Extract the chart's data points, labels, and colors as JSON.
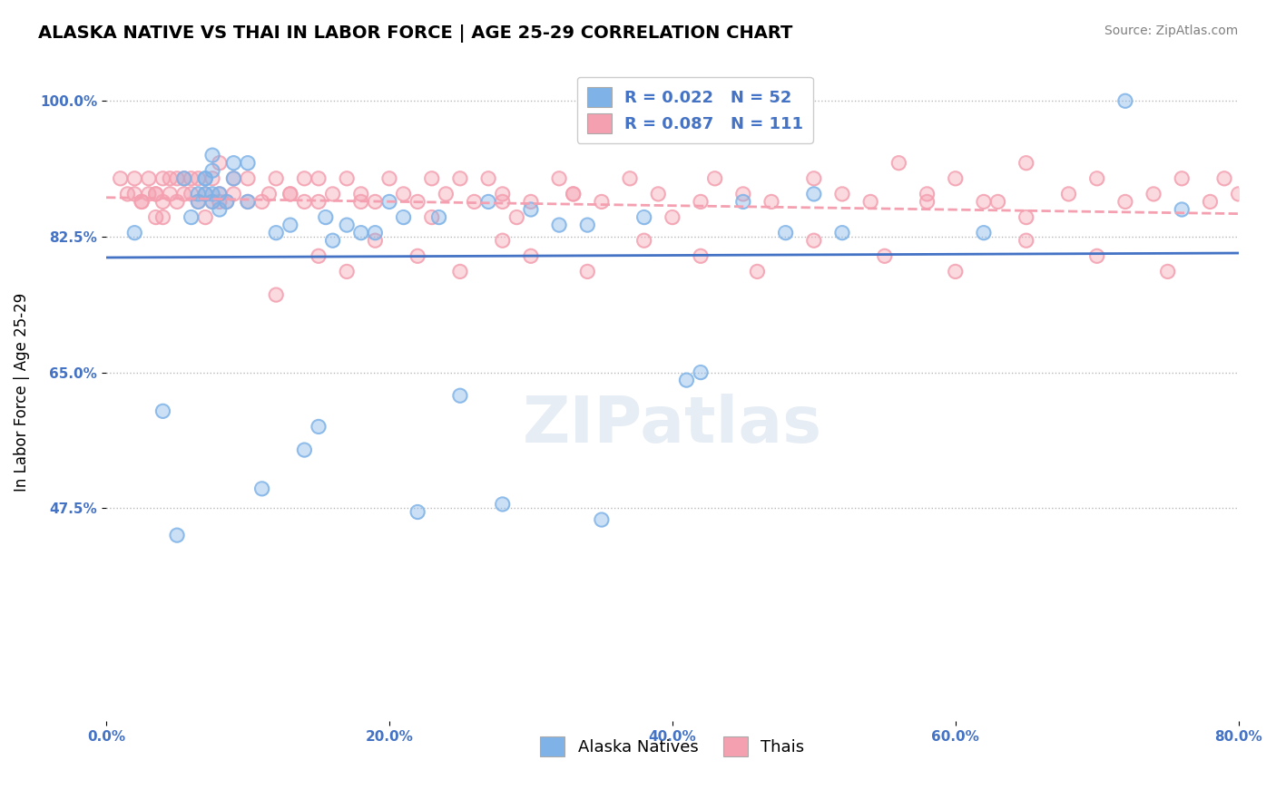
{
  "title": "ALASKA NATIVE VS THAI IN LABOR FORCE | AGE 25-29 CORRELATION CHART",
  "source_text": "Source: ZipAtlas.com",
  "xlabel": "",
  "ylabel": "In Labor Force | Age 25-29",
  "xlim": [
    0.0,
    0.8
  ],
  "ylim": [
    0.2,
    1.05
  ],
  "yticks": [
    0.475,
    0.65,
    0.825,
    1.0
  ],
  "ytick_labels": [
    "47.5%",
    "65.0%",
    "82.5%",
    "100.0%"
  ],
  "xtick_labels": [
    "0.0%",
    "20.0%",
    "40.0%",
    "60.0%",
    "80.0%"
  ],
  "xticks": [
    0.0,
    0.2,
    0.4,
    0.6,
    0.8
  ],
  "alaska_color": "#7FB3E8",
  "thai_color": "#F4A0B0",
  "alaska_R": 0.022,
  "alaska_N": 52,
  "thai_R": 0.087,
  "thai_N": 111,
  "legend_labels": [
    "Alaska Natives",
    "Thais"
  ],
  "title_fontsize": 14,
  "axis_label_fontsize": 12,
  "tick_fontsize": 11,
  "source_fontsize": 10,
  "watermark_text": "ZIPatlas",
  "alaska_scatter_x": [
    0.02,
    0.04,
    0.05,
    0.055,
    0.06,
    0.065,
    0.065,
    0.07,
    0.07,
    0.07,
    0.075,
    0.075,
    0.075,
    0.075,
    0.08,
    0.08,
    0.085,
    0.09,
    0.09,
    0.1,
    0.1,
    0.11,
    0.12,
    0.13,
    0.14,
    0.15,
    0.155,
    0.16,
    0.17,
    0.18,
    0.19,
    0.2,
    0.21,
    0.22,
    0.235,
    0.25,
    0.27,
    0.28,
    0.3,
    0.32,
    0.34,
    0.35,
    0.38,
    0.41,
    0.42,
    0.45,
    0.48,
    0.5,
    0.52,
    0.62,
    0.72,
    0.76
  ],
  "alaska_scatter_y": [
    0.83,
    0.6,
    0.44,
    0.9,
    0.85,
    0.87,
    0.88,
    0.88,
    0.9,
    0.9,
    0.87,
    0.88,
    0.91,
    0.93,
    0.86,
    0.88,
    0.87,
    0.92,
    0.9,
    0.87,
    0.92,
    0.5,
    0.83,
    0.84,
    0.55,
    0.58,
    0.85,
    0.82,
    0.84,
    0.83,
    0.83,
    0.87,
    0.85,
    0.47,
    0.85,
    0.62,
    0.87,
    0.48,
    0.86,
    0.84,
    0.84,
    0.46,
    0.85,
    0.64,
    0.65,
    0.87,
    0.83,
    0.88,
    0.83,
    0.83,
    1.0,
    0.86
  ],
  "thai_scatter_x": [
    0.01,
    0.02,
    0.02,
    0.025,
    0.03,
    0.03,
    0.035,
    0.035,
    0.04,
    0.04,
    0.04,
    0.045,
    0.045,
    0.05,
    0.05,
    0.055,
    0.06,
    0.06,
    0.065,
    0.065,
    0.07,
    0.07,
    0.075,
    0.075,
    0.08,
    0.08,
    0.085,
    0.09,
    0.09,
    0.1,
    0.1,
    0.11,
    0.115,
    0.12,
    0.13,
    0.14,
    0.14,
    0.15,
    0.15,
    0.16,
    0.17,
    0.18,
    0.19,
    0.2,
    0.21,
    0.22,
    0.23,
    0.24,
    0.25,
    0.26,
    0.27,
    0.28,
    0.29,
    0.3,
    0.32,
    0.33,
    0.35,
    0.37,
    0.39,
    0.42,
    0.43,
    0.45,
    0.47,
    0.5,
    0.52,
    0.54,
    0.56,
    0.58,
    0.6,
    0.63,
    0.65,
    0.68,
    0.7,
    0.72,
    0.74,
    0.76,
    0.78,
    0.79,
    0.8,
    0.65,
    0.12,
    0.15,
    0.17,
    0.19,
    0.22,
    0.25,
    0.28,
    0.3,
    0.34,
    0.38,
    0.42,
    0.46,
    0.5,
    0.55,
    0.6,
    0.65,
    0.7,
    0.75,
    0.62,
    0.58,
    0.4,
    0.33,
    0.28,
    0.23,
    0.18,
    0.13,
    0.08,
    0.055,
    0.035,
    0.025,
    0.015
  ],
  "thai_scatter_y": [
    0.9,
    0.88,
    0.9,
    0.87,
    0.88,
    0.9,
    0.85,
    0.88,
    0.87,
    0.9,
    0.85,
    0.88,
    0.9,
    0.87,
    0.9,
    0.88,
    0.88,
    0.9,
    0.87,
    0.9,
    0.88,
    0.85,
    0.87,
    0.9,
    0.88,
    0.92,
    0.87,
    0.9,
    0.88,
    0.87,
    0.9,
    0.87,
    0.88,
    0.9,
    0.88,
    0.87,
    0.9,
    0.87,
    0.9,
    0.88,
    0.9,
    0.88,
    0.87,
    0.9,
    0.88,
    0.87,
    0.9,
    0.88,
    0.9,
    0.87,
    0.9,
    0.88,
    0.85,
    0.87,
    0.9,
    0.88,
    0.87,
    0.9,
    0.88,
    0.87,
    0.9,
    0.88,
    0.87,
    0.9,
    0.88,
    0.87,
    0.92,
    0.88,
    0.9,
    0.87,
    0.92,
    0.88,
    0.9,
    0.87,
    0.88,
    0.9,
    0.87,
    0.9,
    0.88,
    0.85,
    0.75,
    0.8,
    0.78,
    0.82,
    0.8,
    0.78,
    0.82,
    0.8,
    0.78,
    0.82,
    0.8,
    0.78,
    0.82,
    0.8,
    0.78,
    0.82,
    0.8,
    0.78,
    0.87,
    0.87,
    0.85,
    0.88,
    0.87,
    0.85,
    0.87,
    0.88,
    0.87,
    0.9,
    0.88,
    0.87,
    0.88
  ]
}
